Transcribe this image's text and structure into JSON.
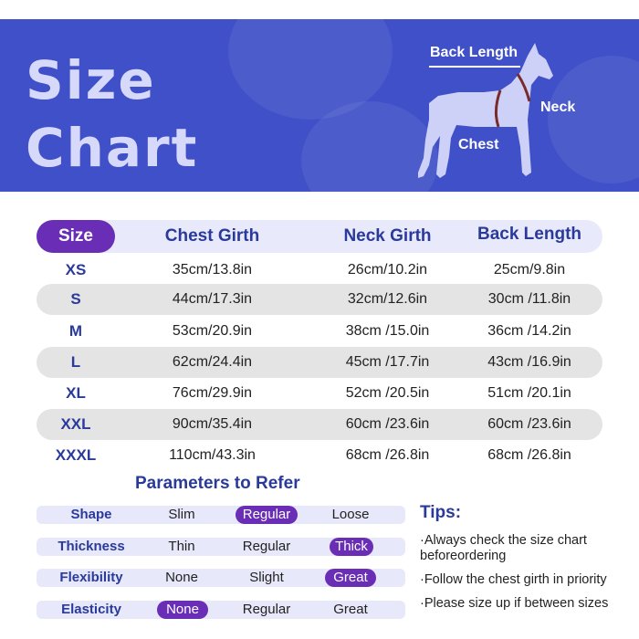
{
  "banner": {
    "title_line1": "Size",
    "title_line2": "Chart",
    "labels": {
      "back_length": "Back Length",
      "neck": "Neck",
      "chest": "Chest"
    },
    "colors": {
      "background": "#3f50c8",
      "title": "#d7d9fb",
      "dog": "#cdd0f7",
      "harness": "#7a2a2a"
    }
  },
  "table": {
    "headers": {
      "size": "Size",
      "chest": "Chest Girth",
      "neck": "Neck Girth",
      "back": "Back Length"
    },
    "rows": [
      {
        "size": "XS",
        "chest": "35cm/13.8in",
        "neck": "26cm/10.2in",
        "back": "25cm/9.8in"
      },
      {
        "size": "S",
        "chest": "44cm/17.3in",
        "neck": "32cm/12.6in",
        "back": "30cm /11.8in"
      },
      {
        "size": "M",
        "chest": "53cm/20.9in",
        "neck": "38cm /15.0in",
        "back": "36cm /14.2in"
      },
      {
        "size": "L",
        "chest": "62cm/24.4in",
        "neck": "45cm /17.7in",
        "back": "43cm /16.9in"
      },
      {
        "size": "XL",
        "chest": "76cm/29.9in",
        "neck": "52cm /20.5in",
        "back": "51cm /20.1in"
      },
      {
        "size": "XXL",
        "chest": "90cm/35.4in",
        "neck": "60cm /23.6in",
        "back": "60cm /23.6in"
      },
      {
        "size": "XXXL",
        "chest": "110cm/43.3in",
        "neck": "68cm /26.8in",
        "back": "68cm /26.8in"
      }
    ]
  },
  "parameters": {
    "title": "Parameters to Refer",
    "rows": [
      {
        "label": "Shape",
        "options": [
          "Slim",
          "Regular",
          "Loose"
        ],
        "selected": 1
      },
      {
        "label": "Thickness",
        "options": [
          "Thin",
          "Regular",
          "Thick"
        ],
        "selected": 2
      },
      {
        "label": "Flexibility",
        "options": [
          "None",
          "Slight",
          "Great"
        ],
        "selected": 2
      },
      {
        "label": "Elasticity",
        "options": [
          "None",
          "Regular",
          "Great"
        ],
        "selected": 0
      }
    ]
  },
  "tips": {
    "title": "Tips:",
    "items": [
      "·Always check the size chart beforeordering",
      "·Follow the chest girth in priority",
      "·Please size up if between sizes"
    ]
  }
}
